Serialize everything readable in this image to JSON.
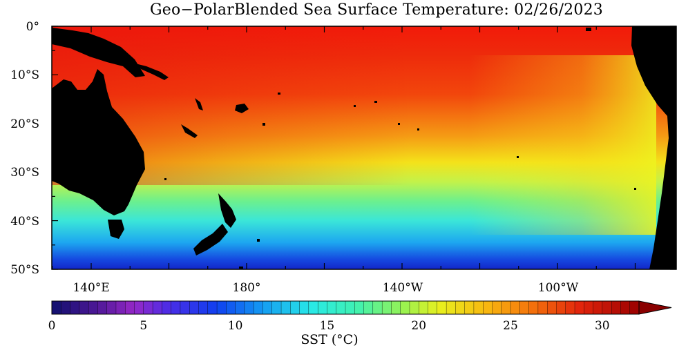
{
  "title": "Geo−PolarBlended Sea Surface Temperature: 02/26/2023",
  "lat_labels": [
    "0°",
    "10°S",
    "20°S",
    "30°S",
    "40°S",
    "50°S"
  ],
  "lon_labels": [
    "140°E",
    "180°",
    "140°W",
    "100°W"
  ],
  "colorbar": {
    "tick_labels": [
      "0",
      "5",
      "10",
      "15",
      "20",
      "25",
      "30"
    ],
    "title": "SST (°C)",
    "range": [
      0,
      32
    ]
  },
  "colors": {
    "land": "#000000",
    "warm": "#e01e0f",
    "cold": "#1226c8"
  }
}
